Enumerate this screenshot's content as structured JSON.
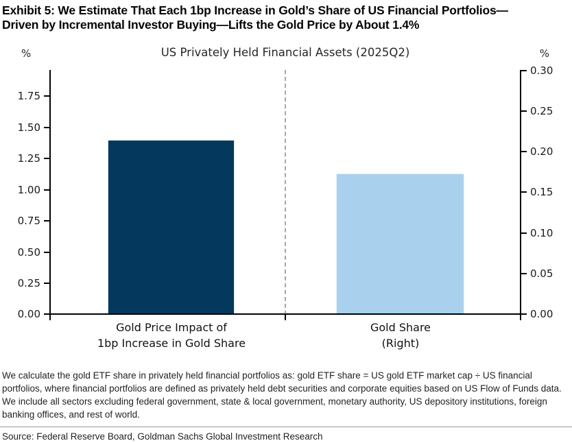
{
  "exhibit_title": {
    "line1": "Exhibit 5: We Estimate That Each 1bp Increase in Gold’s Share of US Financial Portfolios—",
    "line2": "Driven by Incremental Investor Buying—Lifts the Gold Price by About 1.4%"
  },
  "chart_data": {
    "type": "bar",
    "title": "US Privately Held Financial Assets (2025Q2)",
    "legend_position": "none",
    "grid": false,
    "separator": "dashed vertical line between the two category panels",
    "left_axis": {
      "unit_label": "%",
      "ylim": [
        0,
        1.96
      ],
      "ticks_top_to_bottom": [
        "1.75",
        "1.50",
        "1.25",
        "1.00",
        "0.75",
        "0.50",
        "0.25",
        "0.00"
      ]
    },
    "right_axis": {
      "unit_label": "%",
      "ylim": [
        0,
        0.3
      ],
      "ticks_top_to_bottom": [
        "0.30",
        "0.25",
        "0.20",
        "0.15",
        "0.10",
        "0.05",
        "0.00"
      ]
    },
    "categories": [
      {
        "label_line1": "Gold Price Impact of",
        "label_line2": "1bp Increase in Gold Share"
      },
      {
        "label_line1": "Gold Share",
        "label_line2": "(Right)"
      }
    ],
    "series": [
      {
        "name": "Gold Price Impact of 1bp Increase in Gold Share",
        "axis": "left",
        "value": 1.4,
        "color": "#04385c"
      },
      {
        "name": "Gold Share (Right)",
        "axis": "right",
        "value": 0.173,
        "color": "#a9d1ee"
      }
    ]
  },
  "footnote": "We calculate the gold ETF share in privately held financial portfolios as: gold ETF share = US gold ETF market cap ÷ US financial portfolios, where financial portfolios are defined as privately held debt securities and corporate equities based on US Flow of Funds data. We include all sectors excluding federal government, state & local government, monetary authority, US depository institutions, foreign banking offices, and rest of world.",
  "source_line": "Source: Federal Reserve Board, Goldman Sachs Global Investment Research",
  "colors": {
    "bar_dark_navy": "#04385c",
    "bar_light_blue": "#a9d1ee",
    "axis_black": "#000000",
    "separator_gray": "#a6a6a6",
    "divider_rule_gray": "#9a9a9a"
  }
}
